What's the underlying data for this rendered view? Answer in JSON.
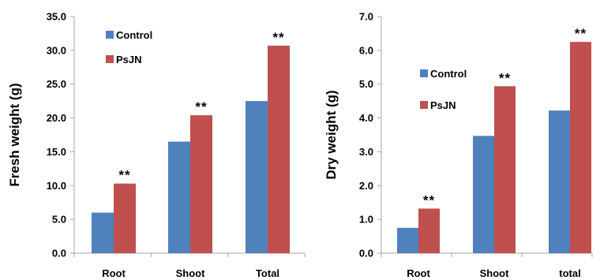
{
  "colors": {
    "control": "#4F81BD",
    "psjn": "#C0504D",
    "axis": "#A6A6A6"
  },
  "chart_data": [
    {
      "type": "bar",
      "categories": [
        "Root",
        "Shoot",
        "Total"
      ],
      "series": [
        {
          "name": "Control",
          "values": [
            6.0,
            16.5,
            22.5
          ],
          "color": "#4F81BD"
        },
        {
          "name": "PsJN",
          "values": [
            10.3,
            20.4,
            30.7
          ],
          "color": "#C0504D"
        }
      ],
      "significance": [
        "**",
        "**",
        "**"
      ],
      "title": "",
      "xlabel": "",
      "ylabel": "Fresh weight (g)",
      "ylim": [
        0,
        35
      ],
      "yticks": [
        "0.0",
        "5.0",
        "10.0",
        "15.0",
        "20.0",
        "25.0",
        "30.0",
        "35.0"
      ],
      "grid": false,
      "legend": "top-left"
    },
    {
      "type": "bar",
      "categories": [
        "Root",
        "Shoot",
        "total"
      ],
      "series": [
        {
          "name": "Control",
          "values": [
            0.75,
            3.47,
            4.22
          ],
          "color": "#4F81BD"
        },
        {
          "name": "PsJN",
          "values": [
            1.32,
            4.94,
            6.25
          ],
          "color": "#C0504D"
        }
      ],
      "significance": [
        "**",
        "**",
        "**"
      ],
      "title": "",
      "xlabel": "",
      "ylabel": "Dry weight (g)",
      "ylim": [
        0,
        7
      ],
      "yticks": [
        "0.0",
        "1.0",
        "2.0",
        "3.0",
        "4.0",
        "5.0",
        "6.0",
        "7.0"
      ],
      "grid": false,
      "legend": "center-left"
    }
  ]
}
